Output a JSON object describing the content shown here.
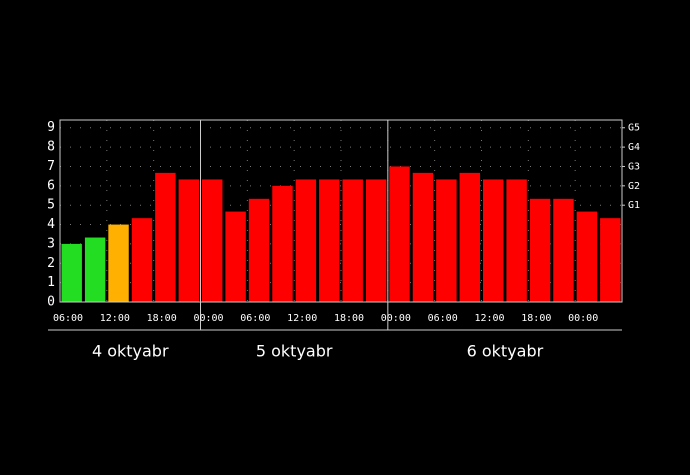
{
  "chart_data": {
    "type": "bar",
    "values": [
      3.0,
      3.33,
      4.0,
      4.33,
      6.67,
      6.33,
      6.33,
      4.67,
      5.33,
      6.0,
      6.33,
      6.33,
      6.33,
      6.33,
      7.0,
      6.67,
      6.33,
      6.67,
      6.33,
      6.33,
      5.33,
      5.33,
      4.67,
      4.33
    ],
    "colors": [
      "#22dd22",
      "#22dd22",
      "#ffb000",
      "#ff0000",
      "#ff0000",
      "#ff0000",
      "#ff0000",
      "#ff0000",
      "#ff0000",
      "#ff0000",
      "#ff0000",
      "#ff0000",
      "#ff0000",
      "#ff0000",
      "#ff0000",
      "#ff0000",
      "#ff0000",
      "#ff0000",
      "#ff0000",
      "#ff0000",
      "#ff0000",
      "#ff0000",
      "#ff0000",
      "#ff0000"
    ],
    "time_labels": [
      "06:00",
      "12:00",
      "18:00",
      "00:00",
      "06:00",
      "12:00",
      "18:00",
      "00:00",
      "06:00",
      "12:00",
      "18:00",
      "00:00"
    ],
    "days": [
      "4 oktyabr",
      "5 oktyabr",
      "6 oktyabr"
    ],
    "ylim": [
      0,
      9.4
    ],
    "yticks": [
      0,
      1,
      2,
      3,
      4,
      5,
      6,
      7,
      8,
      9
    ],
    "y2lim": [
      0,
      9.4
    ],
    "y2ticks": [
      {
        "value": 5,
        "label": "G1"
      },
      {
        "value": 6,
        "label": "G2"
      },
      {
        "value": 7,
        "label": "G3"
      },
      {
        "value": 8,
        "label": "G4"
      },
      {
        "value": 9,
        "label": "G5"
      }
    ],
    "grid": true
  }
}
